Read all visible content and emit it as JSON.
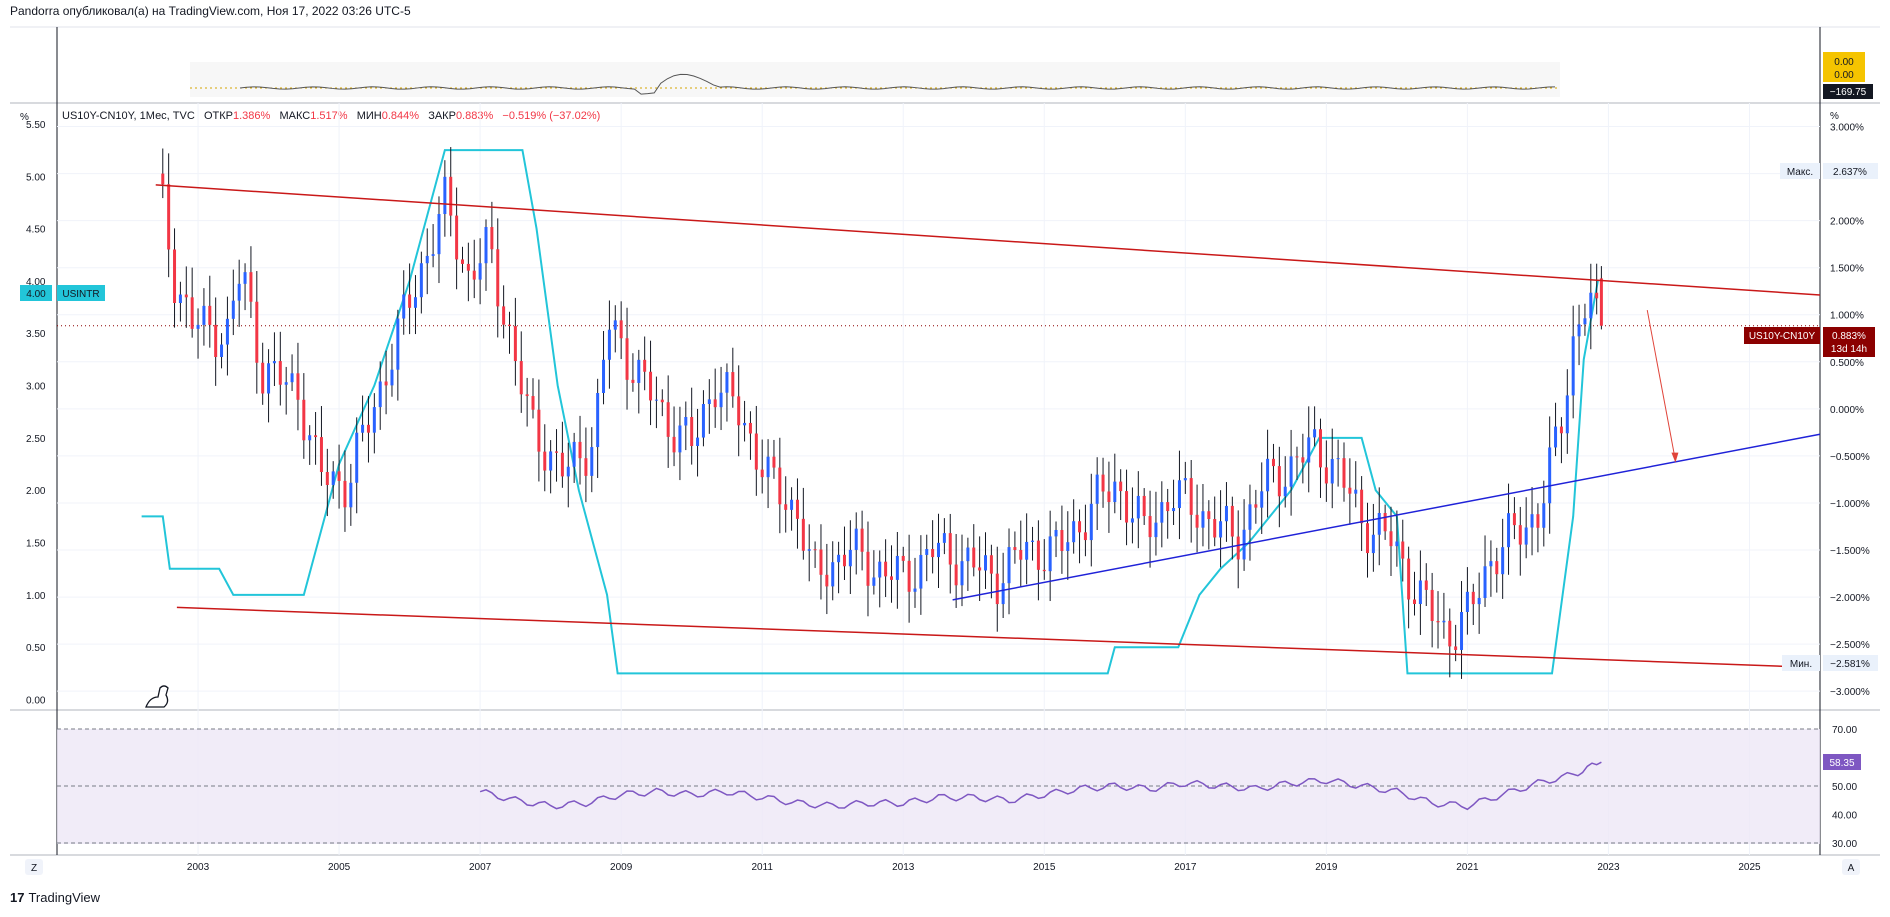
{
  "header": {
    "published": "Pandorra опубликовал(а) на TradingView.com, Ноя 17, 2022 03:26 UTC-5"
  },
  "legend": {
    "symbol": "US10Y-CN10Y, 1Мес, TVC",
    "open_label": "ОТКР",
    "open_value": "1.386%",
    "high_label": "МАКС",
    "high_value": "1.517%",
    "low_label": "МИН",
    "low_value": "0.844%",
    "close_label": "ЗАКР",
    "close_value": "0.883%",
    "change": "−0.519% (−37.02%)"
  },
  "axis": {
    "left_unit": "%",
    "right_unit": "%",
    "max_label": "Макс.",
    "max_value": "2.637%",
    "min_label": "Мин.",
    "min_value": "−2.581%",
    "symbol_badge": "US10Y-CN10Y",
    "symbol_badge_value": "0.883%",
    "countdown": "13d 14h",
    "usintr_value": "4.00",
    "usintr_label": "USINTR",
    "z_button": "Z",
    "a_button": "A"
  },
  "top_pane": {
    "labels": [
      "0.00",
      "0.00"
    ],
    "value": "−169.75"
  },
  "rsi_pane": {
    "value": "58.35"
  },
  "brand": {
    "text": "TradingView"
  },
  "colors": {
    "up": "#2962ff",
    "down": "#f23645",
    "wick": "#131722",
    "usintr": "#22c5d9",
    "channel": "#c91818",
    "trend": "#1f22d8",
    "rsi": "#7e57c2",
    "rsi_band": "#ede7f6",
    "arrow": "#e0443a"
  },
  "chart_data": [
    {
      "type": "line",
      "name": "top-pane-oscillator",
      "x": [
        2003,
        2004,
        2005,
        2006,
        2007,
        2008,
        2009,
        2010,
        2011,
        2012,
        2013,
        2014,
        2015,
        2016,
        2017,
        2018,
        2019,
        2020,
        2021,
        2022
      ],
      "values": [
        0,
        0,
        0,
        0,
        0,
        0,
        -5,
        15,
        0,
        0,
        0,
        0,
        0,
        0,
        0,
        0,
        0,
        0,
        0,
        0
      ]
    },
    {
      "type": "candlestick",
      "title": "US10Y-CN10Y, 1Мес, TVC",
      "right_axis_ticks": [
        "3.000%",
        "2.500%",
        "2.000%",
        "1.500%",
        "1.000%",
        "0.500%",
        "0.000%",
        "−0.500%",
        "−1.000%",
        "−1.500%",
        "−2.000%",
        "−2.500%",
        "−3.000%"
      ],
      "left_axis_ticks": [
        "5.50",
        "5.00",
        "4.50",
        "4.00",
        "3.50",
        "3.00",
        "2.50",
        "2.00",
        "1.50",
        "1.00",
        "0.50",
        "0.00"
      ],
      "x_ticks": [
        "2003",
        "2005",
        "2007",
        "2009",
        "2011",
        "2013",
        "2015",
        "2017",
        "2019",
        "2021",
        "2023",
        "2025"
      ],
      "ylim_right": [
        -3.2,
        3.25
      ],
      "ylim_left": [
        -0.1,
        5.7
      ],
      "xlim": [
        2001.0,
        2026.0
      ],
      "series": [
        {
          "name": "US10Y-CN10Y",
          "anchors": [
            [
              2002.5,
              2.5
            ],
            [
              2002.75,
              1.4
            ],
            [
              2003.0,
              0.9
            ],
            [
              2003.5,
              0.8
            ],
            [
              2003.7,
              1.5
            ],
            [
              2004.0,
              0.4
            ],
            [
              2004.5,
              0.2
            ],
            [
              2004.8,
              -0.7
            ],
            [
              2005.2,
              -0.8
            ],
            [
              2005.7,
              0.3
            ],
            [
              2006.2,
              1.4
            ],
            [
              2006.6,
              2.2
            ],
            [
              2006.9,
              1.4
            ],
            [
              2007.2,
              1.7
            ],
            [
              2007.5,
              0.8
            ],
            [
              2007.8,
              -0.2
            ],
            [
              2008.3,
              -0.7
            ],
            [
              2008.7,
              -0.3
            ],
            [
              2008.9,
              0.9
            ],
            [
              2009.3,
              0.4
            ],
            [
              2009.7,
              -0.1
            ],
            [
              2010.1,
              -0.4
            ],
            [
              2010.4,
              0.3
            ],
            [
              2010.8,
              -0.1
            ],
            [
              2011.2,
              -0.8
            ],
            [
              2011.6,
              -1.1
            ],
            [
              2011.8,
              -1.8
            ],
            [
              2012.3,
              -1.5
            ],
            [
              2012.7,
              -1.7
            ],
            [
              2013.1,
              -1.8
            ],
            [
              2013.5,
              -1.5
            ],
            [
              2013.9,
              -1.6
            ],
            [
              2014.4,
              -1.8
            ],
            [
              2014.8,
              -1.5
            ],
            [
              2015.3,
              -1.5
            ],
            [
              2015.8,
              -1.0
            ],
            [
              2016.1,
              -0.8
            ],
            [
              2016.5,
              -1.3
            ],
            [
              2016.9,
              -0.9
            ],
            [
              2017.3,
              -1.1
            ],
            [
              2017.8,
              -1.4
            ],
            [
              2018.2,
              -0.8
            ],
            [
              2018.6,
              -0.6
            ],
            [
              2018.9,
              -0.4
            ],
            [
              2019.2,
              -0.6
            ],
            [
              2019.6,
              -1.2
            ],
            [
              2020.0,
              -1.4
            ],
            [
              2020.4,
              -2.0
            ],
            [
              2020.8,
              -2.4
            ],
            [
              2021.1,
              -2.2
            ],
            [
              2021.4,
              -1.6
            ],
            [
              2021.8,
              -1.3
            ],
            [
              2022.1,
              -1.1
            ],
            [
              2022.4,
              -0.2
            ],
            [
              2022.6,
              0.8
            ],
            [
              2022.8,
              1.2
            ],
            [
              2022.9,
              0.9
            ]
          ],
          "last_ohlc": {
            "open": 1.386,
            "high": 1.517,
            "low": 0.844,
            "close": 0.883
          }
        },
        {
          "name": "USINTR",
          "points": [
            [
              2002.2,
              1.75
            ],
            [
              2002.5,
              1.75
            ],
            [
              2002.6,
              1.25
            ],
            [
              2003.3,
              1.25
            ],
            [
              2003.5,
              1.0
            ],
            [
              2004.5,
              1.0
            ],
            [
              2004.7,
              1.5
            ],
            [
              2005.0,
              2.25
            ],
            [
              2005.5,
              3.0
            ],
            [
              2006.0,
              4.0
            ],
            [
              2006.5,
              5.25
            ],
            [
              2007.6,
              5.25
            ],
            [
              2007.8,
              4.5
            ],
            [
              2008.1,
              3.0
            ],
            [
              2008.4,
              2.0
            ],
            [
              2008.8,
              1.0
            ],
            [
              2008.95,
              0.25
            ],
            [
              2015.9,
              0.25
            ],
            [
              2016.0,
              0.5
            ],
            [
              2016.9,
              0.5
            ],
            [
              2017.2,
              1.0
            ],
            [
              2017.5,
              1.25
            ],
            [
              2017.9,
              1.5
            ],
            [
              2018.2,
              1.75
            ],
            [
              2018.5,
              2.0
            ],
            [
              2018.9,
              2.5
            ],
            [
              2019.5,
              2.5
            ],
            [
              2019.7,
              2.0
            ],
            [
              2020.0,
              1.75
            ],
            [
              2020.15,
              0.25
            ],
            [
              2022.2,
              0.25
            ],
            [
              2022.35,
              1.0
            ],
            [
              2022.5,
              1.75
            ],
            [
              2022.65,
              3.25
            ],
            [
              2022.85,
              4.0
            ]
          ]
        }
      ],
      "annotations": {
        "channel_upper": [
          [
            2002.4,
            2.38
          ],
          [
            2026.0,
            1.21
          ]
        ],
        "channel_lower": [
          [
            2002.7,
            -2.11
          ],
          [
            2026.0,
            -2.75
          ]
        ],
        "trendline": [
          [
            2013.7,
            -2.03
          ],
          [
            2026.0,
            -0.27
          ]
        ],
        "arrow": [
          [
            2023.55,
            1.05
          ],
          [
            2023.95,
            -0.55
          ]
        ]
      }
    },
    {
      "type": "line",
      "name": "RSI",
      "ylim": [
        25,
        75
      ],
      "ticks": [
        "70.00",
        "50.00",
        "40.00",
        "30.00"
      ],
      "bands": [
        30,
        50,
        70
      ],
      "x": [
        2007.0,
        2007.5,
        2008.0,
        2008.5,
        2009.0,
        2009.5,
        2010.0,
        2010.5,
        2011.0,
        2011.5,
        2012.0,
        2012.5,
        2013.0,
        2013.5,
        2014.0,
        2014.5,
        2015.0,
        2015.5,
        2016.0,
        2016.5,
        2017.0,
        2017.5,
        2018.0,
        2018.5,
        2019.0,
        2019.5,
        2020.0,
        2020.5,
        2021.0,
        2021.5,
        2022.0,
        2022.5,
        2022.9
      ],
      "values": [
        48,
        45,
        43,
        44,
        47,
        48,
        47,
        48,
        46,
        44,
        43,
        44,
        44,
        46,
        46,
        45,
        47,
        49,
        50,
        49,
        51,
        50,
        49,
        51,
        52,
        50,
        48,
        44,
        43,
        47,
        51,
        54,
        58.35
      ]
    }
  ]
}
